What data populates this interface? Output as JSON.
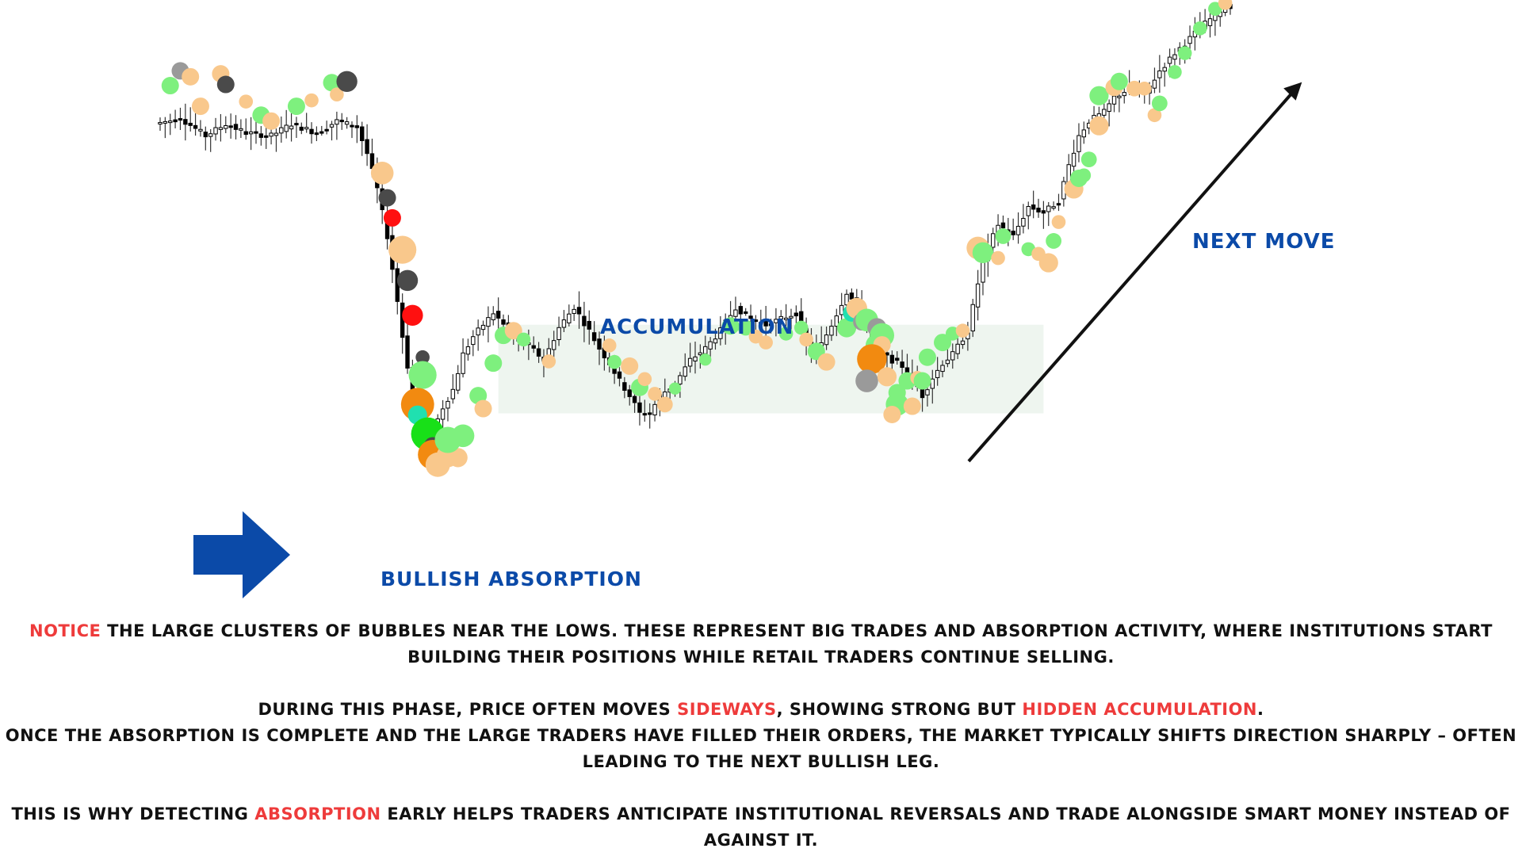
{
  "labels": {
    "accumulation": "ACCUMULATION",
    "bullish_absorption": "BULLISH ABSORPTION",
    "next_move": "NEXT MOVE"
  },
  "colors": {
    "label_blue": "#0b4aa8",
    "highlight_red": "#ee3b3b",
    "arrow_blue": "#0b4aa8",
    "zone_fill": "#eef5ef",
    "bubble_light_green": "#7ef07e",
    "bubble_peach": "#f9c88c",
    "bubble_orange": "#f28a10",
    "bubble_dark": "#4a4a4a",
    "bubble_grey": "#9a9a9a",
    "bubble_red": "#ff1010",
    "bubble_bright_green": "#18e018",
    "bubble_teal": "#20e0b0"
  },
  "paragraphs": {
    "p1": {
      "highlight": "NOTICE",
      "rest": " THE LARGE CLUSTERS OF BUBBLES NEAR THE LOWS. THESE REPRESENT BIG TRADES AND ABSORPTION ACTIVITY, WHERE INSTITUTIONS START BUILDING THEIR POSITIONS WHILE RETAIL TRADERS CONTINUE SELLING."
    },
    "p2": {
      "a": "DURING THIS PHASE, PRICE OFTEN MOVES ",
      "h1": "SIDEWAYS",
      "b": ", SHOWING STRONG BUT ",
      "h2": "HIDDEN ACCUMULATION",
      "c": "."
    },
    "p3": "ONCE THE ABSORPTION IS COMPLETE AND THE LARGE TRADERS HAVE FILLED THEIR ORDERS, THE MARKET TYPICALLY SHIFTS DIRECTION SHARPLY – OFTEN LEADING TO THE NEXT BULLISH LEG.",
    "p4": {
      "a": "THIS IS WHY DETECTING ",
      "highlight": "ABSORPTION",
      "b": " EARLY HELPS TRADERS ANTICIPATE INSTITUTIONAL REVERSALS AND TRADE ALONGSIDE SMART MONEY INSTEAD OF AGAINST IT."
    }
  },
  "chart_data": {
    "type": "candlestick",
    "title": "",
    "xlabel": "",
    "ylabel": "",
    "axes_visible": false,
    "grid": false,
    "ylim": [
      0,
      1000
    ],
    "price_path": [
      [
        0,
        790
      ],
      [
        5,
        800
      ],
      [
        10,
        770
      ],
      [
        14,
        790
      ],
      [
        18,
        775
      ],
      [
        23,
        770
      ],
      [
        27,
        790
      ],
      [
        32,
        775
      ],
      [
        36,
        795
      ],
      [
        40,
        785
      ],
      [
        42,
        740
      ],
      [
        44,
        680
      ],
      [
        45,
        640
      ],
      [
        46,
        600
      ],
      [
        47,
        545
      ],
      [
        48,
        490
      ],
      [
        49,
        430
      ],
      [
        50,
        380
      ],
      [
        51,
        330
      ],
      [
        52,
        300
      ],
      [
        53,
        275
      ],
      [
        54,
        262
      ],
      [
        55,
        270
      ],
      [
        57,
        310
      ],
      [
        59,
        340
      ],
      [
        61,
        400
      ],
      [
        63,
        430
      ],
      [
        65,
        450
      ],
      [
        67,
        470
      ],
      [
        70,
        440
      ],
      [
        72,
        420
      ],
      [
        74,
        415
      ],
      [
        77,
        390
      ],
      [
        80,
        445
      ],
      [
        83,
        480
      ],
      [
        86,
        440
      ],
      [
        88,
        410
      ],
      [
        90,
        385
      ],
      [
        92,
        355
      ],
      [
        94,
        330
      ],
      [
        96,
        300
      ],
      [
        98,
        300
      ],
      [
        100,
        330
      ],
      [
        103,
        350
      ],
      [
        106,
        390
      ],
      [
        109,
        410
      ],
      [
        112,
        440
      ],
      [
        115,
        480
      ],
      [
        118,
        460
      ],
      [
        121,
        450
      ],
      [
        124,
        460
      ],
      [
        127,
        470
      ],
      [
        129,
        420
      ],
      [
        131,
        400
      ],
      [
        134,
        450
      ],
      [
        137,
        505
      ],
      [
        140,
        470
      ],
      [
        142,
        420
      ],
      [
        145,
        395
      ],
      [
        148,
        380
      ],
      [
        150,
        360
      ],
      [
        152,
        330
      ],
      [
        154,
        360
      ],
      [
        156,
        385
      ],
      [
        158,
        400
      ],
      [
        161,
        440
      ],
      [
        164,
        560
      ],
      [
        167,
        620
      ],
      [
        170,
        600
      ],
      [
        173,
        650
      ],
      [
        176,
        640
      ],
      [
        179,
        660
      ],
      [
        181,
        720
      ],
      [
        183,
        770
      ],
      [
        185,
        795
      ],
      [
        188,
        810
      ],
      [
        190,
        835
      ],
      [
        193,
        850
      ],
      [
        196,
        840
      ],
      [
        199,
        880
      ],
      [
        202,
        910
      ],
      [
        205,
        935
      ],
      [
        208,
        960
      ],
      [
        212,
        990
      ]
    ],
    "zone": {
      "x_range": [
        67,
        175
      ],
      "price_range": [
        300,
        450
      ]
    },
    "bubbles": [
      {
        "t": 2,
        "p": 855,
        "type": "light_green",
        "r": 1
      },
      {
        "t": 4,
        "p": 880,
        "type": "grey",
        "r": 1
      },
      {
        "t": 6,
        "p": 870,
        "type": "peach",
        "r": 1
      },
      {
        "t": 8,
        "p": 820,
        "type": "peach",
        "r": 1
      },
      {
        "t": 12,
        "p": 875,
        "type": "peach",
        "r": 1
      },
      {
        "t": 13,
        "p": 857,
        "type": "dark",
        "r": 1
      },
      {
        "t": 17,
        "p": 828,
        "type": "peach",
        "r": 0.8
      },
      {
        "t": 20,
        "p": 805,
        "type": "light_green",
        "r": 1
      },
      {
        "t": 22,
        "p": 795,
        "type": "peach",
        "r": 1
      },
      {
        "t": 27,
        "p": 820,
        "type": "light_green",
        "r": 1
      },
      {
        "t": 30,
        "p": 830,
        "type": "peach",
        "r": 0.8
      },
      {
        "t": 34,
        "p": 860,
        "type": "light_green",
        "r": 1
      },
      {
        "t": 35,
        "p": 840,
        "type": "peach",
        "r": 0.8
      },
      {
        "t": 37,
        "p": 862,
        "type": "dark",
        "r": 1.2
      },
      {
        "t": 44,
        "p": 707,
        "type": "peach",
        "r": 1.3
      },
      {
        "t": 45,
        "p": 665,
        "type": "dark",
        "r": 1
      },
      {
        "t": 46,
        "p": 631,
        "type": "red",
        "r": 1
      },
      {
        "t": 48,
        "p": 577,
        "type": "peach",
        "r": 1.6
      },
      {
        "t": 49,
        "p": 525,
        "type": "dark",
        "r": 1.2
      },
      {
        "t": 50,
        "p": 466,
        "type": "red",
        "r": 1.2
      },
      {
        "t": 52,
        "p": 395,
        "type": "dark",
        "r": 0.8
      },
      {
        "t": 52,
        "p": 365,
        "type": "light_green",
        "r": 1.6
      },
      {
        "t": 51,
        "p": 315,
        "type": "orange",
        "r": 1.9
      },
      {
        "t": 51,
        "p": 297,
        "type": "teal",
        "r": 1.1
      },
      {
        "t": 53,
        "p": 265,
        "type": "bright_green",
        "r": 1.9
      },
      {
        "t": 54,
        "p": 245,
        "type": "dark",
        "r": 1
      },
      {
        "t": 54,
        "p": 230,
        "type": "orange",
        "r": 1.7
      },
      {
        "t": 55,
        "p": 213,
        "type": "peach",
        "r": 1.4
      },
      {
        "t": 57,
        "p": 228,
        "type": "peach",
        "r": 1.3
      },
      {
        "t": 59,
        "p": 225,
        "type": "peach",
        "r": 1.1
      },
      {
        "t": 57,
        "p": 255,
        "type": "light_green",
        "r": 1.5
      },
      {
        "t": 60,
        "p": 262,
        "type": "light_green",
        "r": 1.3
      },
      {
        "t": 63,
        "p": 330,
        "type": "light_green",
        "r": 1
      },
      {
        "t": 64,
        "p": 308,
        "type": "peach",
        "r": 1
      },
      {
        "t": 66,
        "p": 385,
        "type": "light_green",
        "r": 1
      },
      {
        "t": 68,
        "p": 432,
        "type": "light_green",
        "r": 1
      },
      {
        "t": 70,
        "p": 440,
        "type": "peach",
        "r": 1
      },
      {
        "t": 72,
        "p": 425,
        "type": "light_green",
        "r": 0.8
      },
      {
        "t": 77,
        "p": 388,
        "type": "peach",
        "r": 0.8
      },
      {
        "t": 89,
        "p": 415,
        "type": "peach",
        "r": 0.8
      },
      {
        "t": 90,
        "p": 387,
        "type": "light_green",
        "r": 0.8
      },
      {
        "t": 93,
        "p": 380,
        "type": "peach",
        "r": 1
      },
      {
        "t": 95,
        "p": 344,
        "type": "light_green",
        "r": 1
      },
      {
        "t": 96,
        "p": 358,
        "type": "peach",
        "r": 0.8
      },
      {
        "t": 98,
        "p": 333,
        "type": "peach",
        "r": 0.8
      },
      {
        "t": 100,
        "p": 315,
        "type": "peach",
        "r": 0.9
      },
      {
        "t": 102,
        "p": 342,
        "type": "light_green",
        "r": 0.7
      },
      {
        "t": 108,
        "p": 391,
        "type": "light_green",
        "r": 0.7
      },
      {
        "t": 113,
        "p": 448,
        "type": "light_green",
        "r": 1
      },
      {
        "t": 116,
        "p": 445,
        "type": "light_green",
        "r": 0.9
      },
      {
        "t": 118,
        "p": 430,
        "type": "peach",
        "r": 0.8
      },
      {
        "t": 120,
        "p": 420,
        "type": "peach",
        "r": 0.8
      },
      {
        "t": 124,
        "p": 435,
        "type": "light_green",
        "r": 0.8
      },
      {
        "t": 127,
        "p": 445,
        "type": "light_green",
        "r": 0.8
      },
      {
        "t": 128,
        "p": 425,
        "type": "peach",
        "r": 0.8
      },
      {
        "t": 130,
        "p": 405,
        "type": "light_green",
        "r": 1
      },
      {
        "t": 132,
        "p": 387,
        "type": "peach",
        "r": 1
      },
      {
        "t": 136,
        "p": 445,
        "type": "light_green",
        "r": 1.1
      },
      {
        "t": 137,
        "p": 470,
        "type": "teal",
        "r": 1
      },
      {
        "t": 138,
        "p": 478,
        "type": "peach",
        "r": 1.2
      },
      {
        "t": 139,
        "p": 455,
        "type": "grey",
        "r": 1
      },
      {
        "t": 140,
        "p": 458,
        "type": "light_green",
        "r": 1.3
      },
      {
        "t": 142,
        "p": 445,
        "type": "grey",
        "r": 1.1
      },
      {
        "t": 143,
        "p": 432,
        "type": "light_green",
        "r": 1.4
      },
      {
        "t": 142,
        "p": 415,
        "type": "light_green",
        "r": 1.3
      },
      {
        "t": 143,
        "p": 416,
        "type": "peach",
        "r": 1
      },
      {
        "t": 141,
        "p": 392,
        "type": "orange",
        "r": 1.7
      },
      {
        "t": 140,
        "p": 355,
        "type": "grey",
        "r": 1.3
      },
      {
        "t": 144,
        "p": 362,
        "type": "peach",
        "r": 1.1
      },
      {
        "t": 146,
        "p": 335,
        "type": "light_green",
        "r": 1
      },
      {
        "t": 146,
        "p": 315,
        "type": "light_green",
        "r": 1.3
      },
      {
        "t": 145,
        "p": 298,
        "type": "peach",
        "r": 1
      },
      {
        "t": 149,
        "p": 312,
        "type": "peach",
        "r": 1
      },
      {
        "t": 148,
        "p": 355,
        "type": "light_green",
        "r": 1
      },
      {
        "t": 150,
        "p": 360,
        "type": "peach",
        "r": 0.8
      },
      {
        "t": 151,
        "p": 355,
        "type": "light_green",
        "r": 1
      },
      {
        "t": 152,
        "p": 395,
        "type": "light_green",
        "r": 1
      },
      {
        "t": 155,
        "p": 420,
        "type": "light_green",
        "r": 1
      },
      {
        "t": 157,
        "p": 435,
        "type": "light_green",
        "r": 0.8
      },
      {
        "t": 159,
        "p": 440,
        "type": "peach",
        "r": 0.8
      },
      {
        "t": 162,
        "p": 580,
        "type": "peach",
        "r": 1.3
      },
      {
        "t": 163,
        "p": 572,
        "type": "light_green",
        "r": 1.2
      },
      {
        "t": 166,
        "p": 563,
        "type": "peach",
        "r": 0.8
      },
      {
        "t": 167,
        "p": 600,
        "type": "light_green",
        "r": 0.9
      },
      {
        "t": 172,
        "p": 578,
        "type": "light_green",
        "r": 0.8
      },
      {
        "t": 174,
        "p": 570,
        "type": "peach",
        "r": 0.8
      },
      {
        "t": 176,
        "p": 555,
        "type": "peach",
        "r": 1.1
      },
      {
        "t": 177,
        "p": 592,
        "type": "light_green",
        "r": 0.9
      },
      {
        "t": 178,
        "p": 624,
        "type": "peach",
        "r": 0.8
      },
      {
        "t": 181,
        "p": 680,
        "type": "peach",
        "r": 1.1
      },
      {
        "t": 182,
        "p": 698,
        "type": "light_green",
        "r": 1
      },
      {
        "t": 183,
        "p": 703,
        "type": "light_green",
        "r": 0.8
      },
      {
        "t": 184,
        "p": 730,
        "type": "light_green",
        "r": 0.9
      },
      {
        "t": 186,
        "p": 787,
        "type": "peach",
        "r": 1.1
      },
      {
        "t": 186,
        "p": 838,
        "type": "light_green",
        "r": 1.1
      },
      {
        "t": 189,
        "p": 852,
        "type": "peach",
        "r": 1
      },
      {
        "t": 190,
        "p": 862,
        "type": "light_green",
        "r": 1
      },
      {
        "t": 193,
        "p": 850,
        "type": "peach",
        "r": 0.9
      },
      {
        "t": 195,
        "p": 850,
        "type": "peach",
        "r": 0.8
      },
      {
        "t": 197,
        "p": 805,
        "type": "peach",
        "r": 0.8
      },
      {
        "t": 198,
        "p": 825,
        "type": "light_green",
        "r": 0.9
      },
      {
        "t": 201,
        "p": 878,
        "type": "light_green",
        "r": 0.8
      },
      {
        "t": 203,
        "p": 910,
        "type": "light_green",
        "r": 0.8
      },
      {
        "t": 206,
        "p": 952,
        "type": "light_green",
        "r": 0.8
      },
      {
        "t": 209,
        "p": 985,
        "type": "light_green",
        "r": 0.8
      },
      {
        "t": 211,
        "p": 995,
        "type": "peach",
        "r": 0.8
      }
    ],
    "annotations": [
      {
        "type": "arrow",
        "label": "BULLISH ABSORPTION",
        "points_to": "lows"
      },
      {
        "type": "range",
        "label": "ACCUMULATION"
      },
      {
        "type": "trend-arrow",
        "label": "NEXT MOVE",
        "direction": "up-right"
      }
    ]
  }
}
